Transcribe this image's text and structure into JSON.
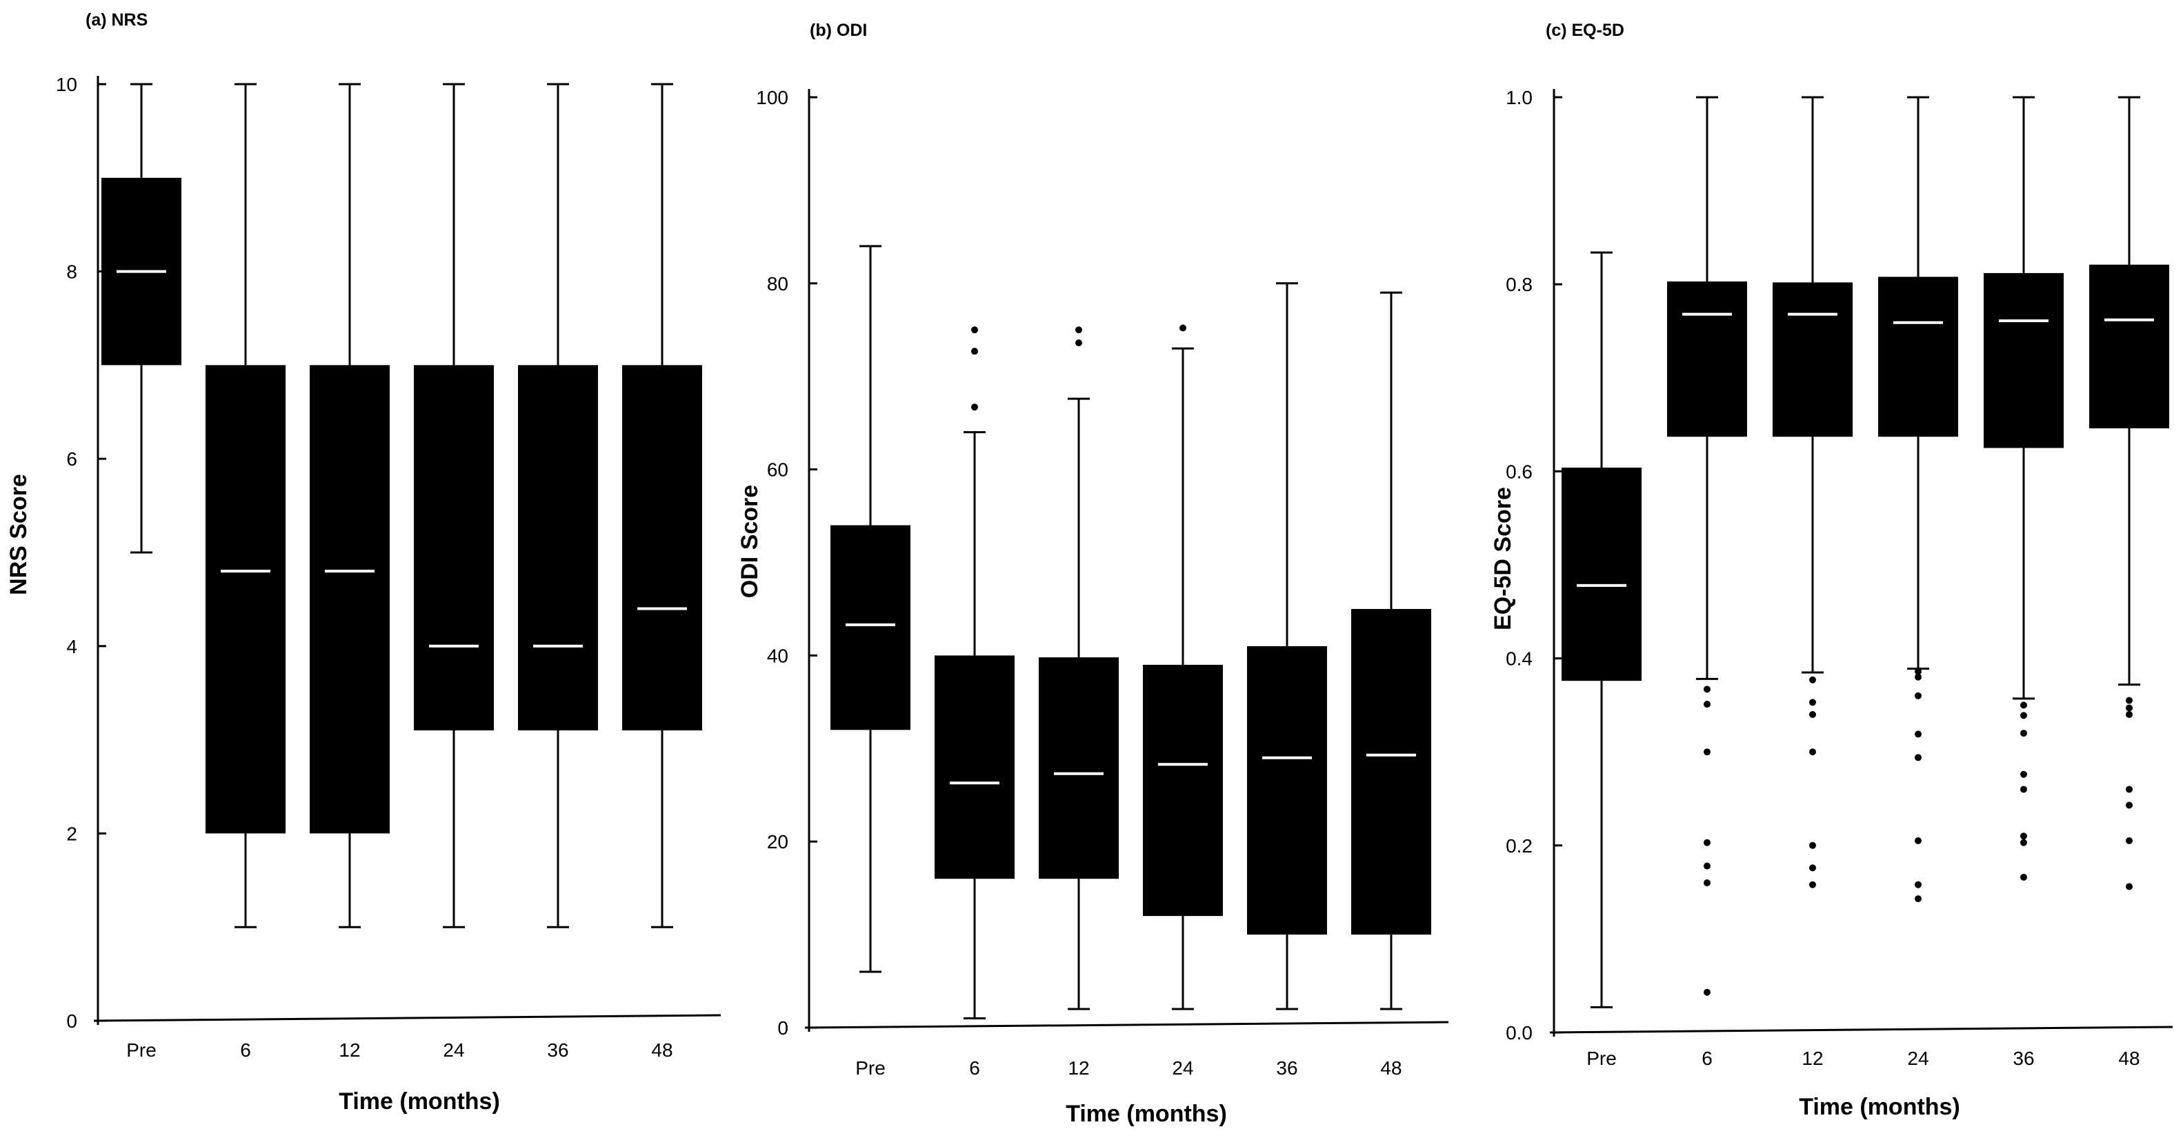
{
  "figure": {
    "x_title": "Time (months)"
  },
  "chart_data": [
    {
      "type": "box",
      "panel_title": "(a) NRS",
      "ylabel": "NRS Score",
      "xlabel": "Time (months)",
      "ylim": [
        0,
        10
      ],
      "yticks": [
        0,
        2,
        4,
        6,
        8,
        10
      ],
      "ytick_labels": [
        "0",
        "2",
        "4",
        "6",
        "8",
        "10"
      ],
      "categories": [
        "Pre",
        "6",
        "12",
        "24",
        "36",
        "48"
      ],
      "boxes": [
        {
          "category": "Pre",
          "min": 5,
          "q1": 7,
          "median": 8,
          "q3": 9,
          "max": 10,
          "outliers": []
        },
        {
          "category": "6",
          "min": 1,
          "q1": 2,
          "median": 4.8,
          "q3": 7,
          "max": 10,
          "outliers": []
        },
        {
          "category": "12",
          "min": 1,
          "q1": 2,
          "median": 4.8,
          "q3": 7,
          "max": 10,
          "outliers": []
        },
        {
          "category": "24",
          "min": 1,
          "q1": 3.1,
          "median": 4,
          "q3": 7,
          "max": 10,
          "outliers": []
        },
        {
          "category": "36",
          "min": 1,
          "q1": 3.1,
          "median": 4,
          "q3": 7,
          "max": 10,
          "outliers": []
        },
        {
          "category": "48",
          "min": 1,
          "q1": 3.1,
          "median": 4.4,
          "q3": 7,
          "max": 10,
          "outliers": []
        }
      ]
    },
    {
      "type": "box",
      "panel_title": "(b) ODI",
      "ylabel": "ODI Score",
      "xlabel": "Time (months)",
      "ylim": [
        0,
        100
      ],
      "yticks": [
        0,
        20,
        40,
        60,
        80,
        100
      ],
      "ytick_labels": [
        "0",
        "20",
        "40",
        "60",
        "80",
        "100"
      ],
      "categories": [
        "Pre",
        "6",
        "12",
        "24",
        "36",
        "48"
      ],
      "boxes": [
        {
          "category": "Pre",
          "min": 6,
          "q1": 32,
          "median": 43.3,
          "q3": 54,
          "max": 84,
          "outliers": []
        },
        {
          "category": "6",
          "min": 1,
          "q1": 16,
          "median": 26.3,
          "q3": 40,
          "max": 64,
          "outliers": [
            66.7,
            72.7,
            75
          ]
        },
        {
          "category": "12",
          "min": 2,
          "q1": 16,
          "median": 27.3,
          "q3": 39.8,
          "max": 67.6,
          "outliers": [
            73.6,
            75
          ]
        },
        {
          "category": "24",
          "min": 2,
          "q1": 12,
          "median": 28.3,
          "q3": 39,
          "max": 73,
          "outliers": [
            75.2
          ]
        },
        {
          "category": "36",
          "min": 2,
          "q1": 10,
          "median": 29,
          "q3": 41,
          "max": 80,
          "outliers": []
        },
        {
          "category": "48",
          "min": 2,
          "q1": 10,
          "median": 29.3,
          "q3": 45,
          "max": 79,
          "outliers": []
        }
      ]
    },
    {
      "type": "box",
      "panel_title": "(c) EQ-5D",
      "ylabel": "EQ-5D Score",
      "xlabel": "Time (months)",
      "ylim": [
        0,
        1
      ],
      "yticks": [
        0,
        0.2,
        0.4,
        0.6,
        0.8,
        1.0
      ],
      "ytick_labels": [
        "0.0",
        "0.2",
        "0.4",
        "0.6",
        "0.8",
        "1.0"
      ],
      "categories": [
        "Pre",
        "6",
        "12",
        "24",
        "36",
        "48"
      ],
      "boxes": [
        {
          "category": "Pre",
          "min": 0.027,
          "q1": 0.376,
          "median": 0.478,
          "q3": 0.604,
          "max": 0.834,
          "outliers": []
        },
        {
          "category": "6",
          "min": 0.378,
          "q1": 0.637,
          "median": 0.768,
          "q3": 0.803,
          "max": 1.0,
          "outliers": [
            0.043,
            0.16,
            0.178,
            0.203,
            0.3,
            0.351,
            0.367
          ]
        },
        {
          "category": "12",
          "min": 0.385,
          "q1": 0.637,
          "median": 0.768,
          "q3": 0.802,
          "max": 1.0,
          "outliers": [
            0.158,
            0.176,
            0.2,
            0.3,
            0.34,
            0.353,
            0.377
          ]
        },
        {
          "category": "24",
          "min": 0.389,
          "q1": 0.637,
          "median": 0.759,
          "q3": 0.808,
          "max": 1.0,
          "outliers": [
            0.143,
            0.158,
            0.205,
            0.294,
            0.319,
            0.36,
            0.38,
            0.386
          ]
        },
        {
          "category": "36",
          "min": 0.357,
          "q1": 0.625,
          "median": 0.761,
          "q3": 0.812,
          "max": 1.0,
          "outliers": [
            0.166,
            0.203,
            0.21,
            0.26,
            0.276,
            0.32,
            0.339,
            0.35
          ]
        },
        {
          "category": "48",
          "min": 0.372,
          "q1": 0.646,
          "median": 0.762,
          "q3": 0.821,
          "max": 1.0,
          "outliers": [
            0.156,
            0.205,
            0.243,
            0.26,
            0.34,
            0.347,
            0.355
          ]
        }
      ]
    }
  ]
}
